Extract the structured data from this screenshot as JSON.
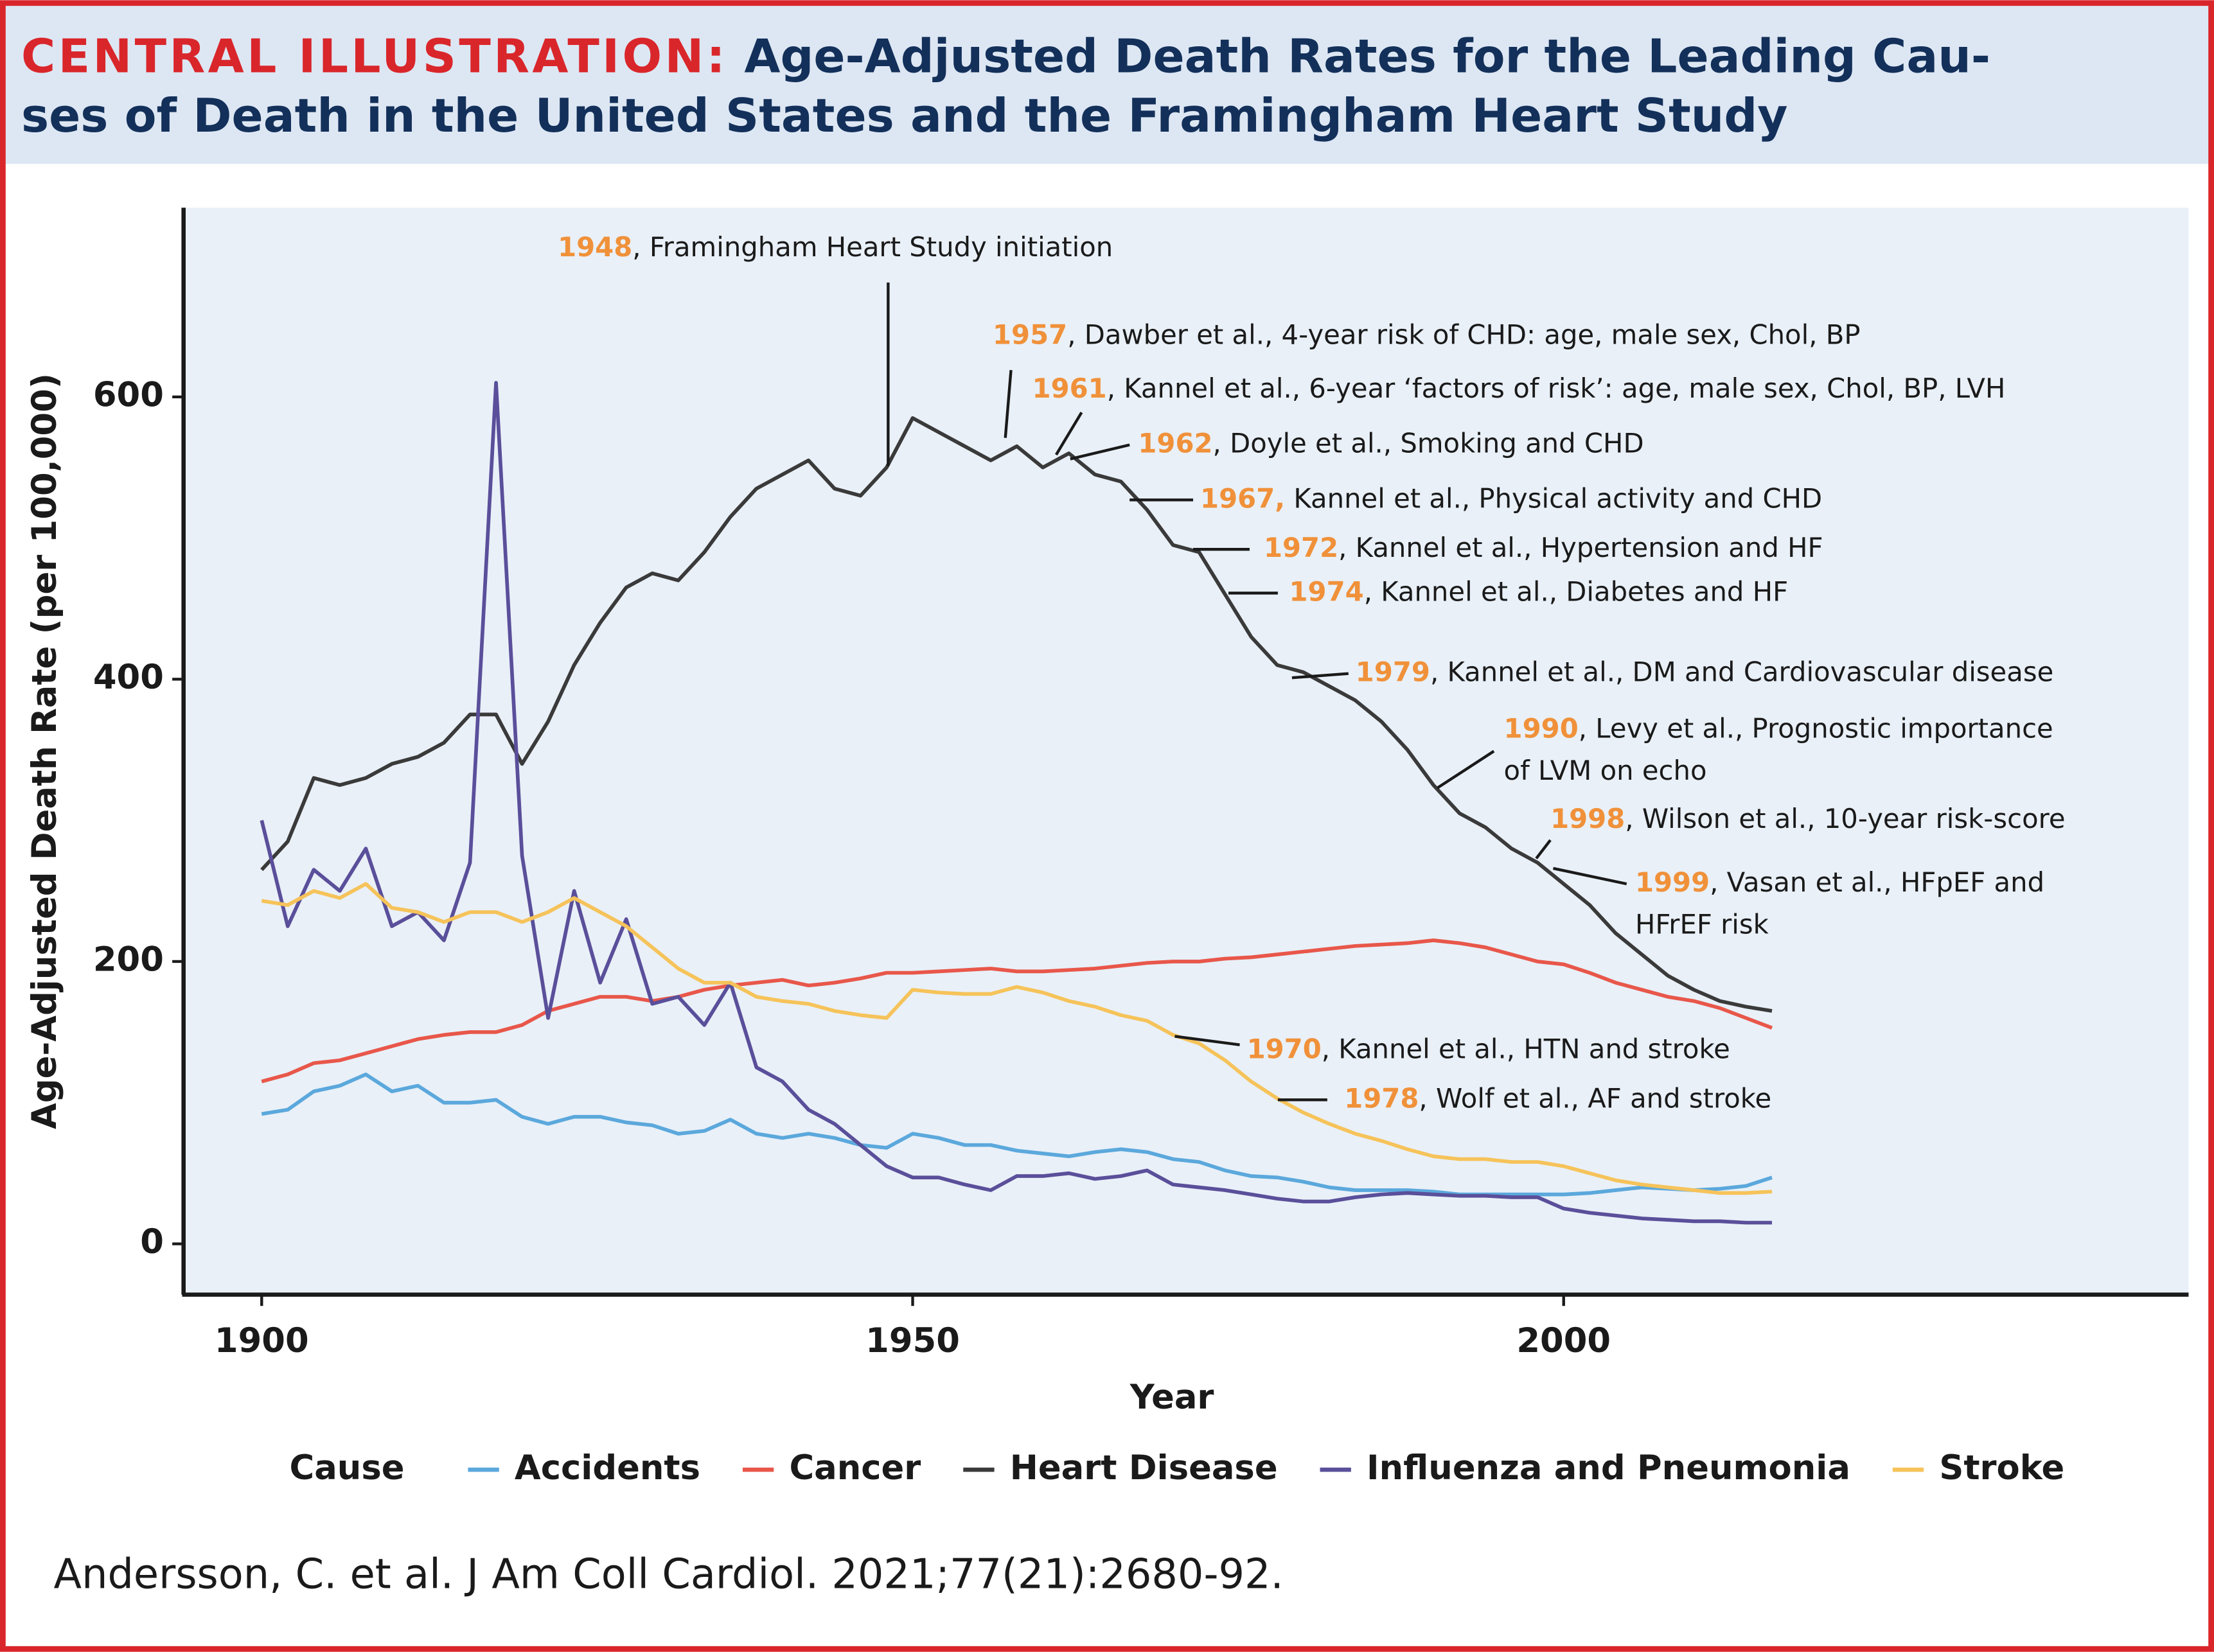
{
  "chart_data": {
    "type": "line",
    "title_label": "CENTRAL ILLUSTRATION:",
    "title": [
      "Age-Adjusted Death Rates for the Leading Cau-",
      "ses of Death in the United States and the Framingham Heart Study"
    ],
    "x_label": "Year",
    "y_label": "Age-Adjusted Death Rate (per 100,000)",
    "xlim": [
      1894,
      2048
    ],
    "ylim": [
      -36,
      734
    ],
    "xticks": [
      1900,
      1950,
      2000
    ],
    "yticks": [
      0,
      200,
      400,
      600
    ],
    "legend_title": "Cause",
    "x": [
      1900,
      1902,
      1904,
      1906,
      1908,
      1910,
      1912,
      1914,
      1916,
      1918,
      1920,
      1922,
      1924,
      1926,
      1928,
      1930,
      1932,
      1934,
      1936,
      1938,
      1940,
      1942,
      1944,
      1946,
      1948,
      1950,
      1952,
      1954,
      1956,
      1958,
      1960,
      1962,
      1964,
      1966,
      1968,
      1970,
      1972,
      1974,
      1976,
      1978,
      1980,
      1982,
      1984,
      1986,
      1988,
      1990,
      1992,
      1994,
      1996,
      1998,
      2000,
      2002,
      2004,
      2006,
      2008,
      2010,
      2012,
      2014,
      2016
    ],
    "series": [
      {
        "name": "Accidents",
        "color": "#5ba8dc",
        "values": [
          92,
          95,
          108,
          112,
          120,
          108,
          112,
          100,
          100,
          102,
          90,
          85,
          90,
          90,
          86,
          84,
          78,
          80,
          88,
          78,
          75,
          78,
          75,
          70,
          68,
          78,
          75,
          70,
          70,
          66,
          64,
          62,
          65,
          67,
          65,
          60,
          58,
          52,
          48,
          47,
          44,
          40,
          38,
          38,
          38,
          37,
          35,
          35,
          35,
          35,
          35,
          36,
          38,
          40,
          39,
          38,
          39,
          41,
          47
        ]
      },
      {
        "name": "Cancer",
        "color": "#e8574a",
        "values": [
          115,
          120,
          128,
          130,
          135,
          140,
          145,
          148,
          150,
          150,
          155,
          165,
          170,
          175,
          175,
          172,
          175,
          180,
          183,
          185,
          187,
          183,
          185,
          188,
          192,
          192,
          193,
          194,
          195,
          193,
          193,
          194,
          195,
          197,
          199,
          200,
          200,
          202,
          203,
          205,
          207,
          209,
          211,
          212,
          213,
          215,
          213,
          210,
          205,
          200,
          198,
          192,
          185,
          180,
          175,
          172,
          167,
          160,
          153
        ]
      },
      {
        "name": "Heart Disease",
        "color": "#3a3a3a",
        "values": [
          265,
          285,
          330,
          325,
          330,
          340,
          345,
          355,
          375,
          375,
          340,
          370,
          410,
          440,
          465,
          475,
          470,
          490,
          515,
          535,
          545,
          555,
          535,
          530,
          550,
          585,
          575,
          565,
          555,
          565,
          550,
          560,
          545,
          540,
          520,
          495,
          490,
          460,
          430,
          410,
          405,
          395,
          385,
          370,
          350,
          325,
          305,
          295,
          280,
          270,
          255,
          240,
          220,
          205,
          190,
          180,
          172,
          168,
          165
        ]
      },
      {
        "name": "Influenza and Pneumonia",
        "color": "#5a4f9a",
        "values": [
          300,
          225,
          265,
          250,
          280,
          225,
          235,
          215,
          270,
          610,
          275,
          160,
          250,
          185,
          230,
          170,
          175,
          155,
          185,
          125,
          115,
          95,
          85,
          70,
          55,
          47,
          47,
          42,
          38,
          48,
          48,
          50,
          46,
          48,
          52,
          42,
          40,
          38,
          35,
          32,
          30,
          30,
          33,
          35,
          36,
          35,
          34,
          34,
          33,
          33,
          25,
          22,
          20,
          18,
          17,
          16,
          16,
          15,
          15
        ]
      },
      {
        "name": "Stroke",
        "color": "#f6c35a",
        "values": [
          243,
          240,
          250,
          245,
          255,
          238,
          235,
          228,
          235,
          235,
          228,
          235,
          245,
          235,
          225,
          210,
          195,
          185,
          185,
          175,
          172,
          170,
          165,
          162,
          160,
          180,
          178,
          177,
          177,
          182,
          178,
          172,
          168,
          162,
          158,
          148,
          142,
          130,
          115,
          103,
          93,
          85,
          78,
          73,
          67,
          62,
          60,
          60,
          58,
          58,
          55,
          50,
          45,
          42,
          40,
          38,
          36,
          36,
          37
        ]
      }
    ],
    "annotation_color": "#f0913a",
    "annotations": [
      {
        "year": "1948",
        "text": [
          ", Framingham Heart Study initiation"
        ]
      },
      {
        "year": "1957",
        "text": [
          ", Dawber et al., 4-year risk of CHD: age, male sex, Chol, BP"
        ]
      },
      {
        "year": "1961",
        "text": [
          ", Kannel et al., 6-year ‘factors of risk’: age, male sex, Chol, BP, LVH"
        ]
      },
      {
        "year": "1962",
        "text": [
          ", Doyle et al., Smoking and CHD"
        ]
      },
      {
        "year": "1967,",
        "text": [
          " Kannel et al., Physical activity and CHD"
        ]
      },
      {
        "year": "1972",
        "text": [
          ", Kannel et al., Hypertension and HF"
        ]
      },
      {
        "year": "1974",
        "text": [
          ", Kannel et al., Diabetes and HF"
        ]
      },
      {
        "year": "1979",
        "text": [
          ", Kannel et al., DM and Cardiovascular disease"
        ]
      },
      {
        "year": "1990",
        "text": [
          ", Levy et al., Prognostic importance",
          "of LVM on echo"
        ]
      },
      {
        "year": "1998",
        "text": [
          ", Wilson et al., 10-year risk-score"
        ]
      },
      {
        "year": "1999",
        "text": [
          ", Vasan et al., HFpEF and",
          "HFrEF risk"
        ]
      },
      {
        "year": "1970",
        "text": [
          ", Kannel et al., HTN and stroke"
        ]
      },
      {
        "year": "1978",
        "text": [
          ", Wolf et al., AF and stroke"
        ]
      }
    ],
    "source": "Andersson, C. et al. J Am Coll Cardiol. 2021;77(21):2680-92."
  }
}
